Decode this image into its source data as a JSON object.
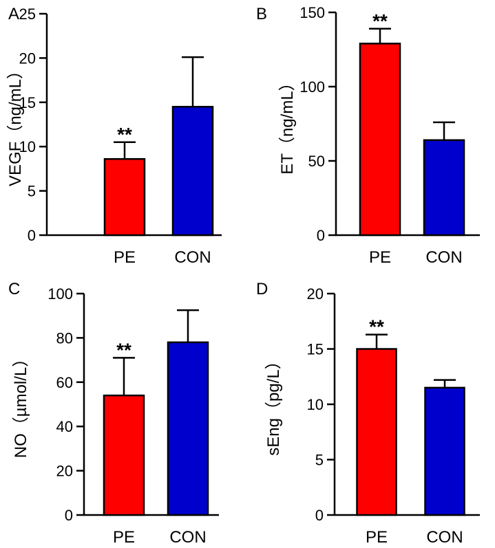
{
  "chart_data": [
    {
      "panel": "A",
      "type": "bar",
      "categories": [
        "PE",
        "CON"
      ],
      "values": [
        8.6,
        14.5
      ],
      "errors": [
        1.9,
        5.6
      ],
      "colors": [
        "#ff0000",
        "#0000cc"
      ],
      "significance": [
        "**",
        ""
      ],
      "ylabel": "VEGF（ng/mL）",
      "ylim": [
        0,
        25
      ],
      "yticks": [
        0,
        5,
        10,
        15,
        20,
        25
      ]
    },
    {
      "panel": "B",
      "type": "bar",
      "categories": [
        "PE",
        "CON"
      ],
      "values": [
        129,
        64
      ],
      "errors": [
        10,
        12
      ],
      "colors": [
        "#ff0000",
        "#0000cc"
      ],
      "significance": [
        "**",
        ""
      ],
      "ylabel": "ET（ng/mL）",
      "ylim": [
        0,
        150
      ],
      "yticks": [
        0,
        50,
        100,
        150
      ]
    },
    {
      "panel": "C",
      "type": "bar",
      "categories": [
        "PE",
        "CON"
      ],
      "values": [
        54,
        78
      ],
      "errors": [
        17,
        14.5
      ],
      "colors": [
        "#ff0000",
        "#0000cc"
      ],
      "significance": [
        "**",
        ""
      ],
      "ylabel": "NO（µmol/L）",
      "ylim": [
        0,
        100
      ],
      "yticks": [
        0,
        20,
        40,
        60,
        80,
        100
      ]
    },
    {
      "panel": "D",
      "type": "bar",
      "categories": [
        "PE",
        "CON"
      ],
      "values": [
        15.0,
        11.5
      ],
      "errors": [
        1.3,
        0.7
      ],
      "colors": [
        "#ff0000",
        "#0000cc"
      ],
      "significance": [
        "**",
        ""
      ],
      "ylabel": "sEng（pg/L）",
      "ylim": [
        0,
        20
      ],
      "yticks": [
        0,
        5,
        10,
        15,
        20
      ]
    }
  ]
}
